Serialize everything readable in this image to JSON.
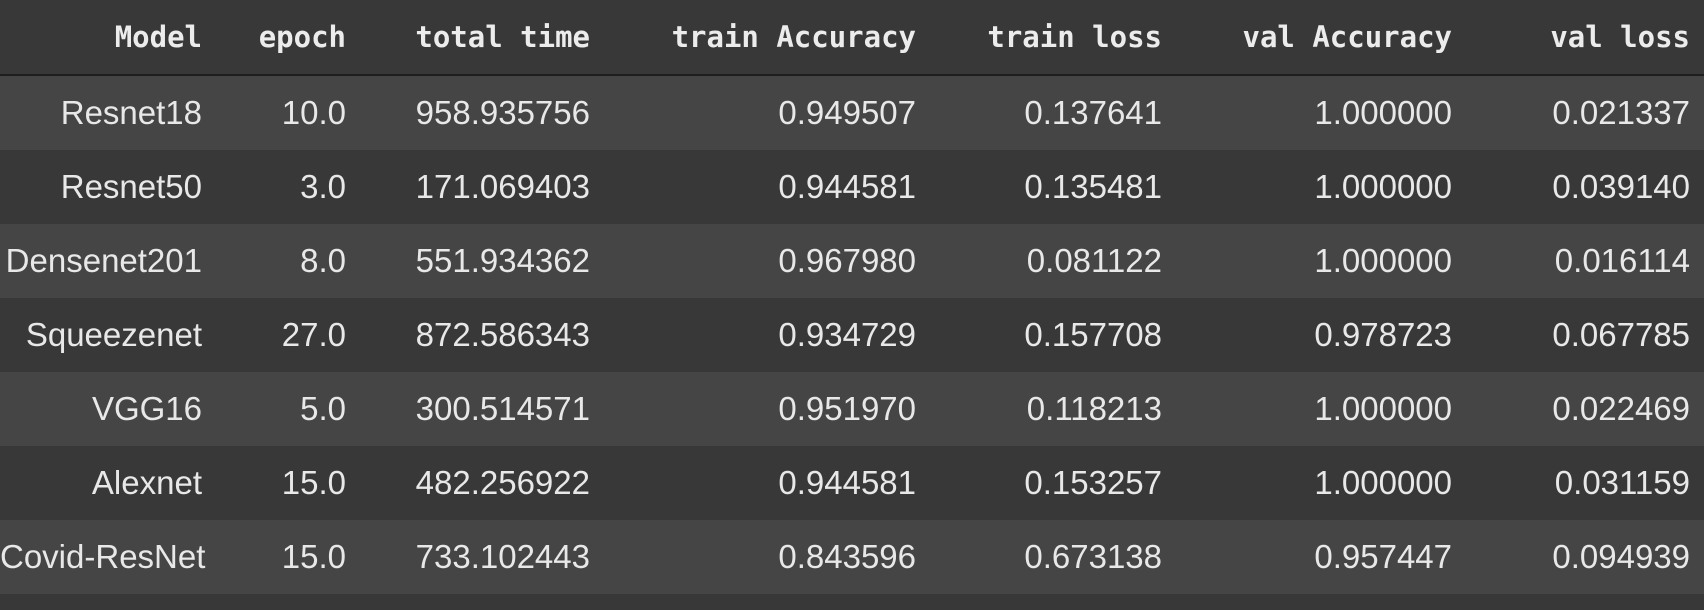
{
  "table": {
    "columns": [
      "Model",
      "epoch",
      "total time",
      "train Accuracy",
      "train loss",
      "val Accuracy",
      "val loss"
    ],
    "rows": [
      [
        "Resnet18",
        "10.0",
        "958.935756",
        "0.949507",
        "0.137641",
        "1.000000",
        "0.021337"
      ],
      [
        "Resnet50",
        "3.0",
        "171.069403",
        "0.944581",
        "0.135481",
        "1.000000",
        "0.039140"
      ],
      [
        "Densenet201",
        "8.0",
        "551.934362",
        "0.967980",
        "0.081122",
        "1.000000",
        "0.016114"
      ],
      [
        "Squeezenet",
        "27.0",
        "872.586343",
        "0.934729",
        "0.157708",
        "0.978723",
        "0.067785"
      ],
      [
        "VGG16",
        "5.0",
        "300.514571",
        "0.951970",
        "0.118213",
        "1.000000",
        "0.022469"
      ],
      [
        "Alexnet",
        "15.0",
        "482.256922",
        "0.944581",
        "0.153257",
        "1.000000",
        "0.031159"
      ],
      [
        "Covid-ResNet",
        "15.0",
        "733.102443",
        "0.843596",
        "0.673138",
        "0.957447",
        "0.094939"
      ]
    ]
  },
  "colors": {
    "background": "#383838",
    "row_alt": "#454545",
    "text": "#e8e8e8"
  }
}
